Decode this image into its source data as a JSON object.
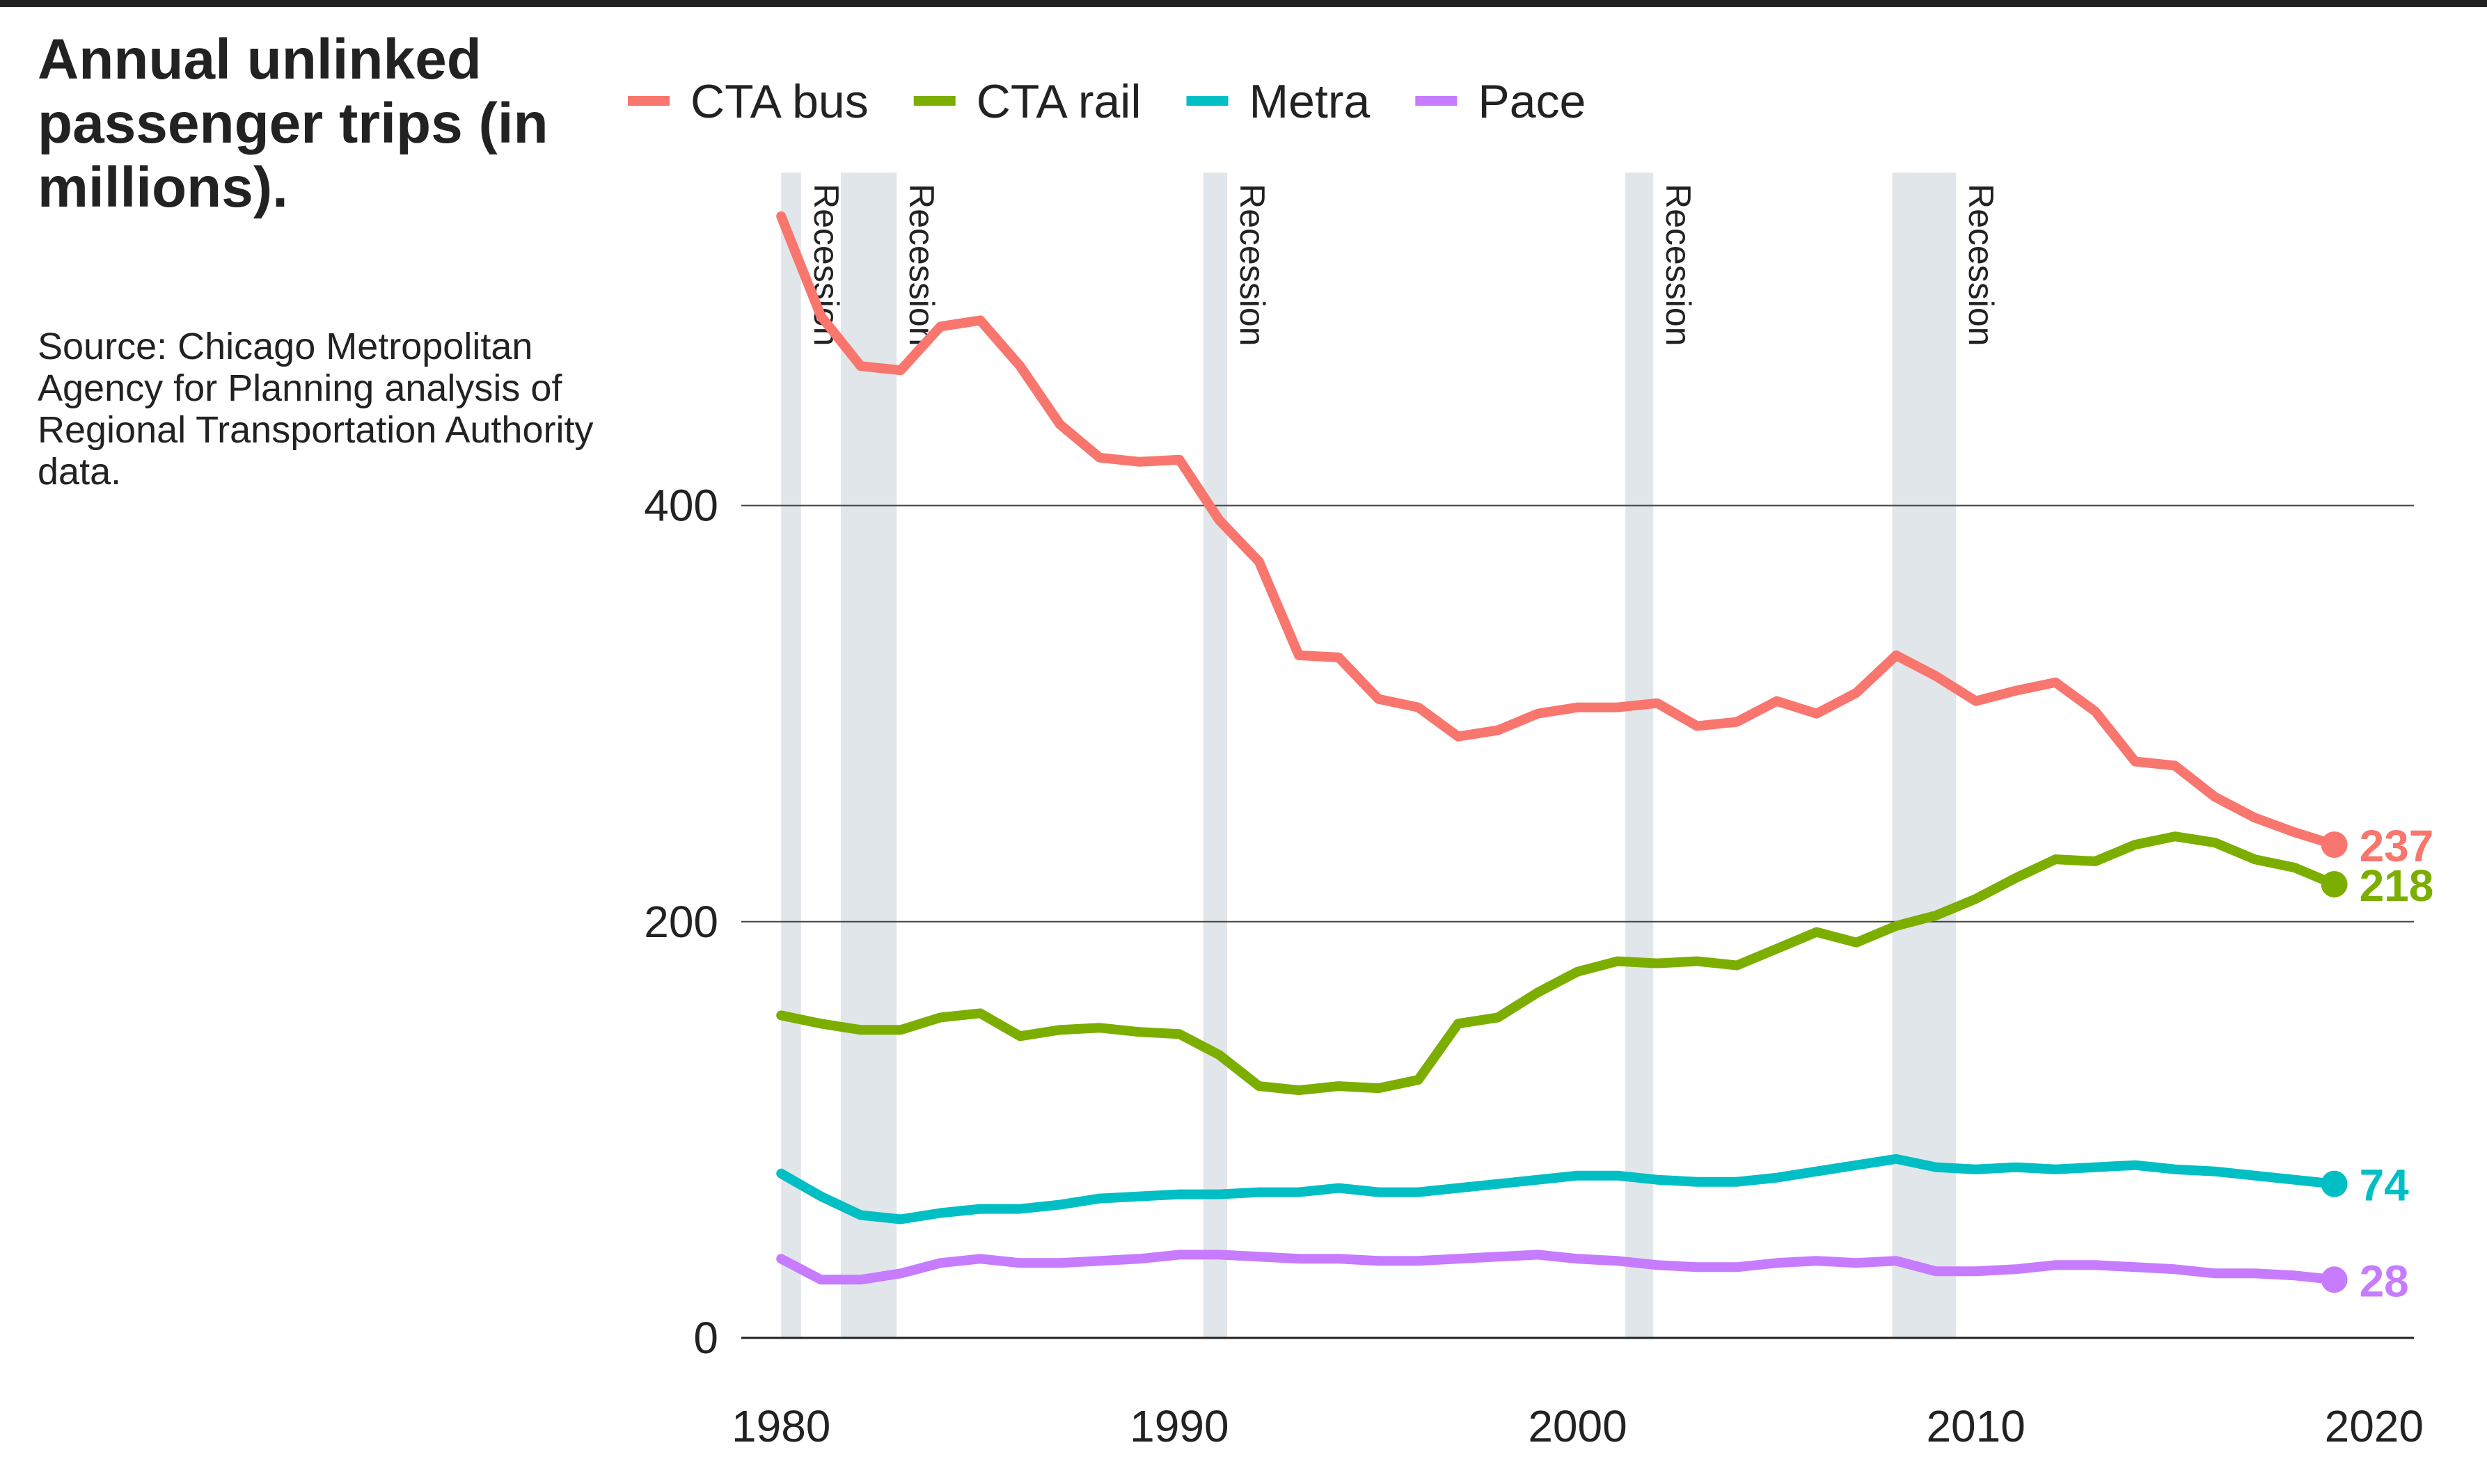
{
  "title": "Annual unlinked passenger trips (in millions).",
  "source": "Source: Chicago Metropolitan Agency for Planning analysis of Regional Transportation Authority data.",
  "chart_data": {
    "type": "line",
    "title": "Annual unlinked passenger trips (in millions).",
    "xlabel": "",
    "ylabel": "",
    "xlim": [
      1979,
      2021
    ],
    "ylim": [
      0,
      560
    ],
    "x_ticks": [
      "1980",
      "1990",
      "2000",
      "2010",
      "2020"
    ],
    "y_ticks": [
      "0",
      "200",
      "400"
    ],
    "grid": "horizontal",
    "legend_position": "top",
    "recession_label": "Recession",
    "recessions": [
      {
        "start": 1980.0,
        "end": 1980.5
      },
      {
        "start": 1981.5,
        "end": 1982.9
      },
      {
        "start": 1990.6,
        "end": 1991.2
      },
      {
        "start": 2001.2,
        "end": 2001.9
      },
      {
        "start": 2007.9,
        "end": 2009.5
      }
    ],
    "x": [
      1980,
      1981,
      1982,
      1983,
      1984,
      1985,
      1986,
      1987,
      1988,
      1989,
      1990,
      1991,
      1992,
      1993,
      1994,
      1995,
      1996,
      1997,
      1998,
      1999,
      2000,
      2001,
      2002,
      2003,
      2004,
      2005,
      2006,
      2007,
      2008,
      2009,
      2010,
      2011,
      2012,
      2013,
      2014,
      2015,
      2016,
      2017,
      2018,
      2019
    ],
    "series": [
      {
        "name": "CTA bus",
        "color": "#F8766D",
        "end_label": "237",
        "values": [
          539,
          491,
          467,
          465,
          486,
          489,
          467,
          439,
          423,
          421,
          422,
          393,
          373,
          328,
          327,
          307,
          303,
          289,
          292,
          300,
          303,
          303,
          305,
          294,
          296,
          306,
          300,
          310,
          328,
          318,
          306,
          311,
          315,
          301,
          277,
          275,
          260,
          250,
          243,
          237
        ]
      },
      {
        "name": "CTA rail",
        "color": "#7CAE00",
        "end_label": "218",
        "values": [
          155,
          151,
          148,
          148,
          154,
          156,
          145,
          148,
          149,
          147,
          146,
          136,
          121,
          119,
          121,
          120,
          124,
          151,
          154,
          166,
          176,
          181,
          180,
          181,
          179,
          187,
          195,
          190,
          198,
          203,
          211,
          221,
          230,
          229,
          237,
          241,
          238,
          230,
          226,
          218
        ]
      },
      {
        "name": "Metra",
        "color": "#00BFC4",
        "end_label": "74",
        "values": [
          79,
          68,
          59,
          57,
          60,
          62,
          62,
          64,
          67,
          68,
          69,
          69,
          70,
          70,
          72,
          70,
          70,
          72,
          74,
          76,
          78,
          78,
          76,
          75,
          75,
          77,
          80,
          83,
          86,
          82,
          81,
          82,
          81,
          82,
          83,
          81,
          80,
          78,
          76,
          74
        ]
      },
      {
        "name": "Pace",
        "color": "#C77CFF",
        "end_label": "28",
        "values": [
          38,
          28,
          28,
          31,
          36,
          38,
          36,
          36,
          37,
          38,
          40,
          40,
          39,
          38,
          38,
          37,
          37,
          38,
          39,
          40,
          38,
          37,
          35,
          34,
          34,
          36,
          37,
          36,
          37,
          32,
          32,
          33,
          35,
          35,
          34,
          33,
          31,
          31,
          30,
          28
        ]
      }
    ]
  }
}
